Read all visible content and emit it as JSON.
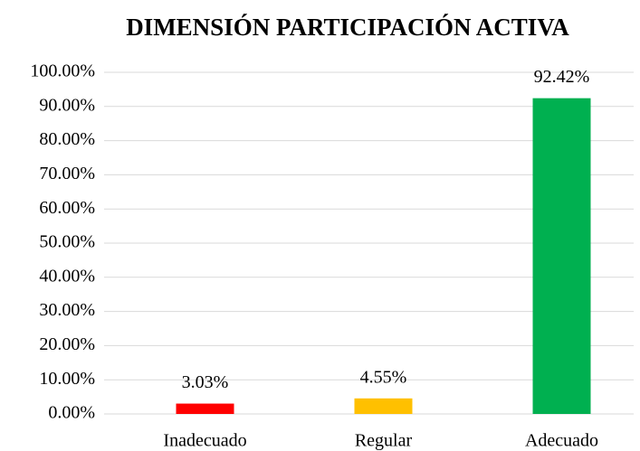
{
  "chart_data": {
    "type": "bar",
    "title": "DIMENSIÓN PARTICIPACIÓN ACTIVA",
    "categories": [
      "Inadecuado",
      "Regular",
      "Adecuado"
    ],
    "values": [
      3.03,
      4.55,
      92.42
    ],
    "value_labels": [
      "3.03%",
      "4.55%",
      "92.42%"
    ],
    "colors": [
      "#ff0000",
      "#ffc000",
      "#00b050"
    ],
    "ylim": [
      0,
      100
    ],
    "yticks": [
      {
        "value": 0,
        "label": "0.00%"
      },
      {
        "value": 10,
        "label": "10.00%"
      },
      {
        "value": 20,
        "label": "20.00%"
      },
      {
        "value": 30,
        "label": "30.00%"
      },
      {
        "value": 40,
        "label": "40.00%"
      },
      {
        "value": 50,
        "label": "50.00%"
      },
      {
        "value": 60,
        "label": "60.00%"
      },
      {
        "value": 70,
        "label": "70.00%"
      },
      {
        "value": 80,
        "label": "80.00%"
      },
      {
        "value": 90,
        "label": "90.00%"
      },
      {
        "value": 100,
        "label": "100.00%"
      }
    ],
    "grid": true
  }
}
